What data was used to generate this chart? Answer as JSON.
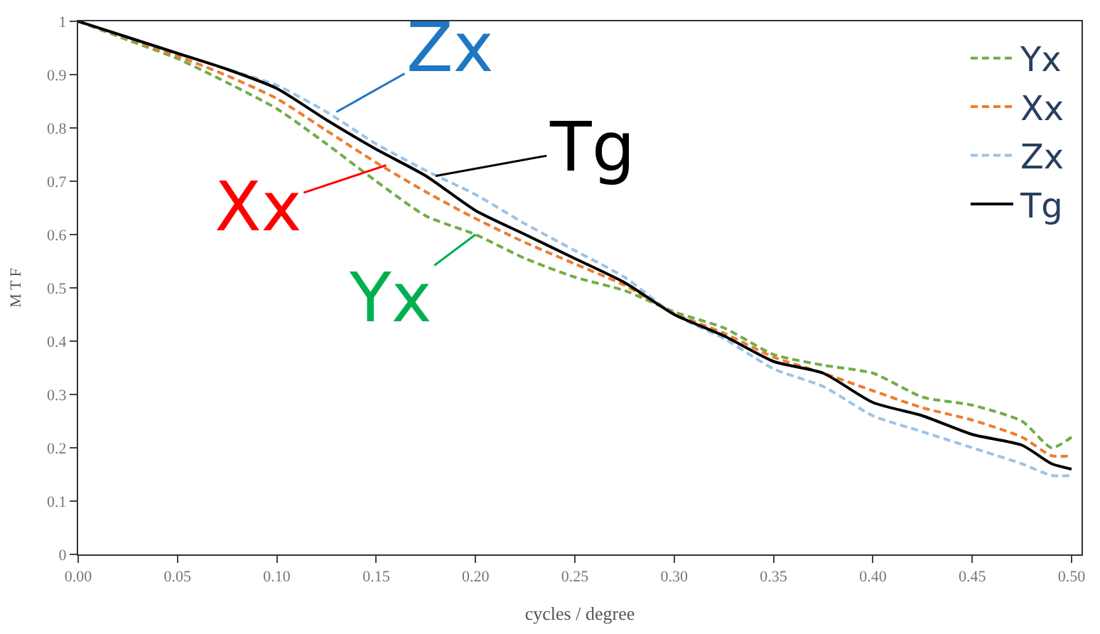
{
  "chart_data": {
    "type": "line",
    "xlabel": "cycles / degree",
    "ylabel": "M T F",
    "x": [
      0,
      0.025,
      0.05,
      0.075,
      0.1,
      0.125,
      0.15,
      0.175,
      0.2,
      0.225,
      0.25,
      0.275,
      0.3,
      0.325,
      0.35,
      0.375,
      0.4,
      0.425,
      0.45,
      0.475,
      0.49,
      0.5
    ],
    "series": [
      {
        "name": "Yx",
        "color": "#70ad47",
        "line_style": "dashed",
        "values": [
          1.0,
          0.965,
          0.93,
          0.885,
          0.836,
          0.77,
          0.7,
          0.635,
          0.6,
          0.555,
          0.52,
          0.495,
          0.455,
          0.425,
          0.375,
          0.355,
          0.34,
          0.295,
          0.28,
          0.25,
          0.2,
          0.22
        ]
      },
      {
        "name": "Xx",
        "color": "#ed7d31",
        "line_style": "dashed",
        "values": [
          1.0,
          0.968,
          0.935,
          0.898,
          0.855,
          0.795,
          0.735,
          0.68,
          0.63,
          0.585,
          0.545,
          0.505,
          0.452,
          0.415,
          0.37,
          0.34,
          0.307,
          0.275,
          0.252,
          0.22,
          0.185,
          0.185
        ]
      },
      {
        "name": "Zx",
        "color": "#9dc3e6",
        "line_style": "dashed",
        "values": [
          1.0,
          0.97,
          0.94,
          0.91,
          0.88,
          0.83,
          0.77,
          0.72,
          0.675,
          0.62,
          0.57,
          0.52,
          0.45,
          0.405,
          0.348,
          0.315,
          0.26,
          0.23,
          0.2,
          0.17,
          0.148,
          0.148
        ]
      },
      {
        "name": "Tg",
        "color": "#000000",
        "line_style": "solid",
        "values": [
          1.0,
          0.97,
          0.94,
          0.91,
          0.874,
          0.815,
          0.76,
          0.71,
          0.645,
          0.6,
          0.555,
          0.51,
          0.45,
          0.41,
          0.362,
          0.34,
          0.285,
          0.26,
          0.225,
          0.205,
          0.17,
          0.16
        ]
      }
    ],
    "xlim": [
      0,
      0.505
    ],
    "ylim": [
      0,
      1
    ],
    "xticks": [
      {
        "value": 0,
        "label": "0.00"
      },
      {
        "value": 0.05,
        "label": "0.05"
      },
      {
        "value": 0.1,
        "label": "0.10"
      },
      {
        "value": 0.15,
        "label": "0.15"
      },
      {
        "value": 0.2,
        "label": "0.20"
      },
      {
        "value": 0.25,
        "label": "0.25"
      },
      {
        "value": 0.3,
        "label": "0.30"
      },
      {
        "value": 0.35,
        "label": "0.35"
      },
      {
        "value": 0.4,
        "label": "0.40"
      },
      {
        "value": 0.45,
        "label": "0.45"
      },
      {
        "value": 0.5,
        "label": "0.50"
      }
    ],
    "yticks": [
      0,
      0.1,
      0.2,
      0.3,
      0.4,
      0.5,
      0.6,
      0.7,
      0.8,
      0.9,
      1
    ],
    "annotations": [
      {
        "text": "Zx",
        "x": 0.13,
        "y": 0.83
      },
      {
        "text": "Tg",
        "x": 0.18,
        "y": 0.71
      },
      {
        "text": "Xx",
        "x": 0.155,
        "y": 0.73
      },
      {
        "text": "Yx",
        "x": 0.2,
        "y": 0.6
      }
    ],
    "legend": "top right",
    "marker": "none"
  }
}
